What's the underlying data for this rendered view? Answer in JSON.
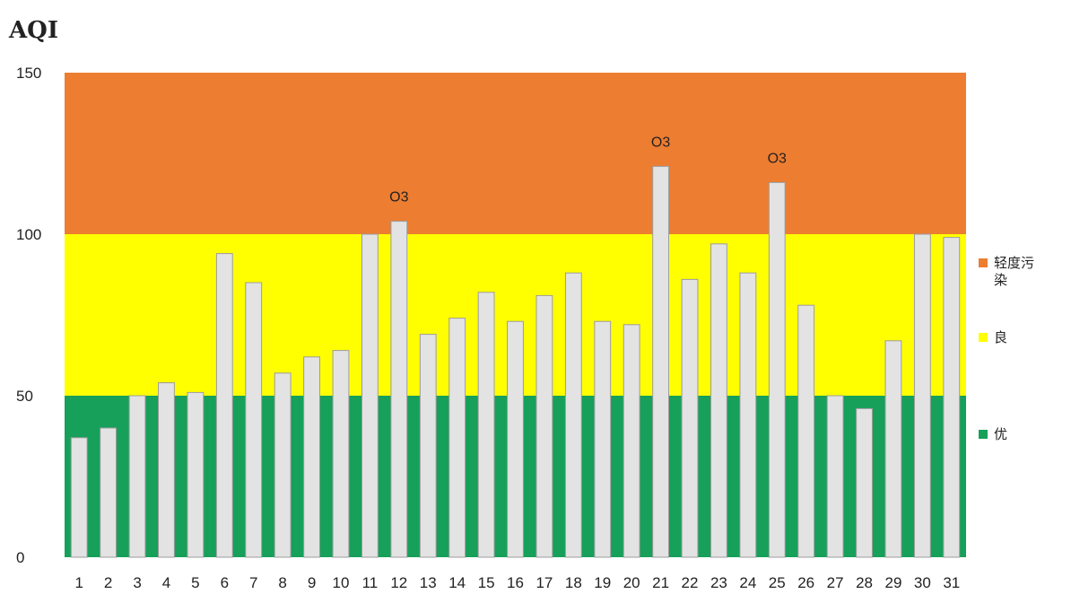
{
  "chart_data": {
    "type": "bar",
    "title": "AQI",
    "categories": [
      "1",
      "2",
      "3",
      "4",
      "5",
      "6",
      "7",
      "8",
      "9",
      "10",
      "11",
      "12",
      "13",
      "14",
      "15",
      "16",
      "17",
      "18",
      "19",
      "20",
      "21",
      "22",
      "23",
      "24",
      "25",
      "26",
      "27",
      "28",
      "29",
      "30",
      "31"
    ],
    "values": [
      37,
      40,
      50,
      54,
      51,
      94,
      85,
      57,
      62,
      64,
      100,
      104,
      69,
      74,
      82,
      73,
      81,
      88,
      73,
      72,
      121,
      86,
      97,
      88,
      116,
      78,
      50,
      46,
      67,
      100,
      99
    ],
    "ylim": [
      0,
      150
    ],
    "yticks": [
      0,
      50,
      100,
      150
    ],
    "bands": [
      {
        "name": "轻度污染",
        "from": 100,
        "to": 150,
        "color": "#ED7D31"
      },
      {
        "name": "良",
        "from": 50,
        "to": 100,
        "color": "#FFFF00"
      },
      {
        "name": "优",
        "from": 0,
        "to": 50,
        "color": "#16A05A"
      }
    ],
    "bar_color": "#E3E3E3",
    "bar_stroke": "#9C9C9C",
    "annotations": [
      {
        "category": "12",
        "text": "O3"
      },
      {
        "category": "21",
        "text": "O3"
      },
      {
        "category": "25",
        "text": "O3"
      }
    ],
    "legend": {
      "position": "right",
      "entries": [
        "轻度污染",
        "良",
        "优"
      ]
    },
    "grid": false
  }
}
